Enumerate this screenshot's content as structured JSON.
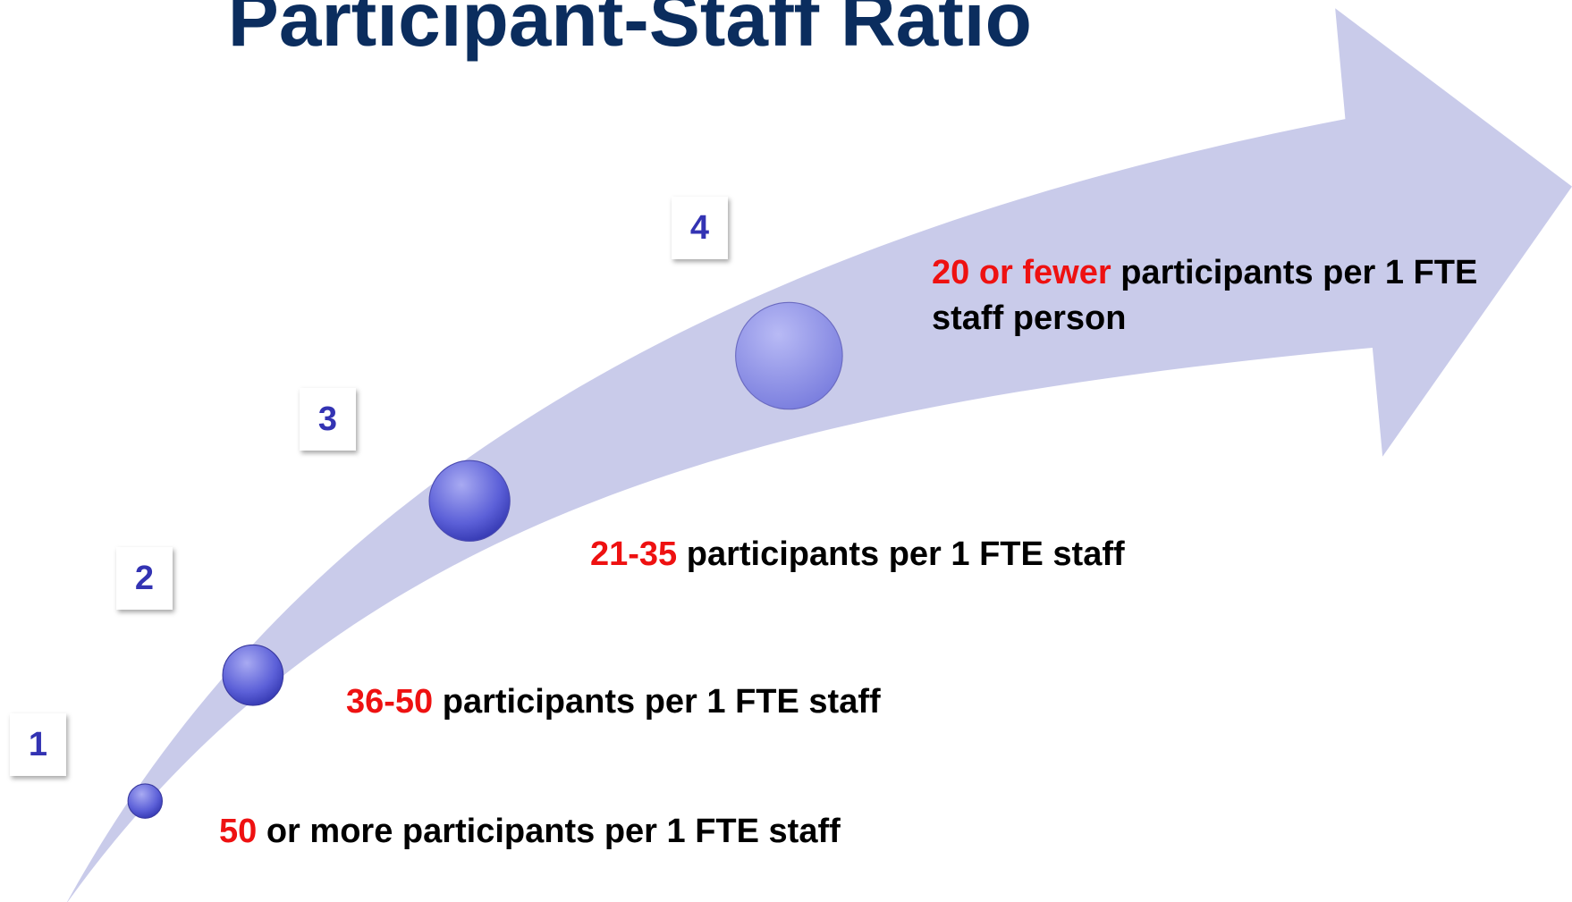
{
  "title": "Participant-Staff Ratio",
  "steps": [
    {
      "number": "1",
      "highlight": "50",
      "text": "or more participants per 1 FTE staff"
    },
    {
      "number": "2",
      "highlight": "36-50",
      "text": "participants per 1 FTE staff"
    },
    {
      "number": "3",
      "highlight": "21-35",
      "text": "participants per 1 FTE staff"
    },
    {
      "number": "4",
      "highlight": "20 or fewer",
      "text": "participants per 1 FTE staff person"
    }
  ]
}
